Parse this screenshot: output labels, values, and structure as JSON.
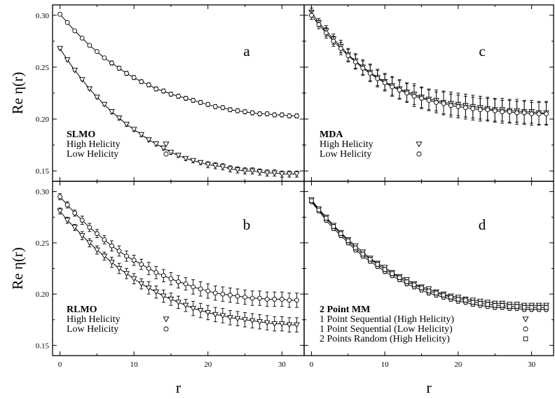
{
  "chart_data": [
    {
      "id": "a",
      "type": "scatter",
      "panel_letter": "a",
      "legend_title": "SLMO",
      "xlim": [
        -1,
        33
      ],
      "ylim": [
        0.14,
        0.31
      ],
      "yticks": [
        "0.15",
        "0.20",
        "0.25",
        "0.30"
      ],
      "xticks": [],
      "ylabel": "Re η(r)",
      "xlabel": "",
      "series": [
        {
          "name": "High Helicity",
          "marker": "triangle",
          "fit_line": true,
          "x": [
            0,
            1,
            2,
            3,
            4,
            5,
            6,
            7,
            8,
            9,
            10,
            11,
            12,
            13,
            14,
            15,
            16,
            17,
            18,
            19,
            20,
            21,
            22,
            23,
            24,
            25,
            26,
            27,
            28,
            29,
            30,
            31,
            32
          ],
          "y": [
            0.268,
            0.257,
            0.247,
            0.238,
            0.229,
            0.221,
            0.214,
            0.207,
            0.201,
            0.195,
            0.19,
            0.185,
            0.18,
            0.176,
            0.172,
            0.168,
            0.165,
            0.162,
            0.16,
            0.158,
            0.156,
            0.155,
            0.154,
            0.152,
            0.151,
            0.15,
            0.15,
            0.149,
            0.148,
            0.148,
            0.147,
            0.147,
            0.147
          ],
          "err": [
            0.001,
            0.001,
            0.001,
            0.001,
            0.001,
            0.001,
            0.001,
            0.002,
            0.002,
            0.002,
            0.002,
            0.002,
            0.002,
            0.002,
            0.002,
            0.002,
            0.002,
            0.002,
            0.002,
            0.002,
            0.003,
            0.003,
            0.003,
            0.003,
            0.003,
            0.003,
            0.003,
            0.003,
            0.003,
            0.003,
            0.003,
            0.003,
            0.003
          ]
        },
        {
          "name": "Low Helicity",
          "marker": "circle",
          "fit_line": true,
          "x": [
            0,
            1,
            2,
            3,
            4,
            5,
            6,
            7,
            8,
            9,
            10,
            11,
            12,
            13,
            14,
            15,
            16,
            17,
            18,
            19,
            20,
            21,
            22,
            23,
            24,
            25,
            26,
            27,
            28,
            29,
            30,
            31,
            32
          ],
          "y": [
            0.301,
            0.293,
            0.285,
            0.278,
            0.271,
            0.265,
            0.259,
            0.254,
            0.249,
            0.244,
            0.24,
            0.236,
            0.233,
            0.229,
            0.227,
            0.224,
            0.222,
            0.22,
            0.218,
            0.216,
            0.214,
            0.212,
            0.211,
            0.209,
            0.208,
            0.207,
            0.206,
            0.205,
            0.205,
            0.204,
            0.204,
            0.203,
            0.203
          ],
          "err": [
            0.001,
            0.001,
            0.001,
            0.001,
            0.001,
            0.001,
            0.001,
            0.002,
            0.002,
            0.002,
            0.002,
            0.002,
            0.002,
            0.002,
            0.002,
            0.002,
            0.002,
            0.002,
            0.002,
            0.002,
            0.002,
            0.002,
            0.002,
            0.002,
            0.002,
            0.002,
            0.002,
            0.002,
            0.002,
            0.002,
            0.002,
            0.002,
            0.002
          ]
        }
      ]
    },
    {
      "id": "c",
      "type": "scatter",
      "panel_letter": "c",
      "legend_title": "MDA",
      "xlim": [
        -1,
        33
      ],
      "ylim": [
        0.14,
        0.31
      ],
      "yticks": [],
      "xticks": [],
      "ylabel": "",
      "xlabel": "",
      "series": [
        {
          "name": "High Helicity",
          "marker": "triangle",
          "fit_line": true,
          "x": [
            0,
            1,
            2,
            3,
            4,
            5,
            6,
            7,
            8,
            9,
            10,
            11,
            12,
            13,
            14,
            15,
            16,
            17,
            18,
            19,
            20,
            21,
            22,
            23,
            24,
            25,
            26,
            27,
            28,
            29,
            30,
            31,
            32
          ],
          "y": [
            0.303,
            0.293,
            0.285,
            0.277,
            0.27,
            0.262,
            0.256,
            0.25,
            0.245,
            0.24,
            0.236,
            0.232,
            0.229,
            0.226,
            0.224,
            0.221,
            0.219,
            0.218,
            0.216,
            0.215,
            0.214,
            0.213,
            0.212,
            0.211,
            0.21,
            0.209,
            0.209,
            0.208,
            0.208,
            0.207,
            0.207,
            0.206,
            0.206
          ],
          "err": [
            0.004,
            0.004,
            0.005,
            0.005,
            0.006,
            0.006,
            0.007,
            0.007,
            0.008,
            0.008,
            0.008,
            0.009,
            0.009,
            0.009,
            0.01,
            0.01,
            0.01,
            0.01,
            0.011,
            0.011,
            0.011,
            0.011,
            0.011,
            0.011,
            0.011,
            0.011,
            0.011,
            0.011,
            0.011,
            0.011,
            0.011,
            0.011,
            0.011
          ]
        },
        {
          "name": "Low Helicity",
          "marker": "circle",
          "fit_line": true,
          "x": [
            0,
            1,
            2,
            3,
            4,
            5,
            6,
            7,
            8,
            9,
            10,
            11,
            12,
            13,
            14,
            15,
            16,
            17,
            18,
            19,
            20,
            21,
            22,
            23,
            24,
            25,
            26,
            27,
            28,
            29,
            30,
            31,
            32
          ],
          "y": [
            0.3,
            0.291,
            0.283,
            0.275,
            0.268,
            0.261,
            0.255,
            0.249,
            0.244,
            0.239,
            0.235,
            0.231,
            0.228,
            0.225,
            0.222,
            0.22,
            0.218,
            0.216,
            0.215,
            0.213,
            0.212,
            0.211,
            0.21,
            0.209,
            0.209,
            0.208,
            0.207,
            0.207,
            0.206,
            0.206,
            0.205,
            0.205,
            0.205
          ],
          "err": [
            0.004,
            0.004,
            0.005,
            0.005,
            0.006,
            0.006,
            0.007,
            0.007,
            0.008,
            0.008,
            0.008,
            0.009,
            0.009,
            0.009,
            0.01,
            0.01,
            0.01,
            0.01,
            0.011,
            0.011,
            0.011,
            0.011,
            0.011,
            0.011,
            0.011,
            0.011,
            0.011,
            0.011,
            0.011,
            0.011,
            0.011,
            0.011,
            0.011
          ]
        }
      ]
    },
    {
      "id": "b",
      "type": "scatter",
      "panel_letter": "b",
      "legend_title": "RLMO",
      "xlim": [
        -1,
        33
      ],
      "ylim": [
        0.14,
        0.31
      ],
      "yticks": [
        "0.15",
        "0.20",
        "0.25",
        "0.30"
      ],
      "xticks": [
        "0",
        "10",
        "20",
        "30"
      ],
      "ylabel": "Re η(r)",
      "xlabel": "r",
      "series": [
        {
          "name": "High Helicity",
          "marker": "triangle",
          "fit_line": true,
          "x": [
            0,
            1,
            2,
            3,
            4,
            5,
            6,
            7,
            8,
            9,
            10,
            11,
            12,
            13,
            14,
            15,
            16,
            17,
            18,
            19,
            20,
            21,
            22,
            23,
            24,
            25,
            26,
            27,
            28,
            29,
            30,
            31,
            32
          ],
          "y": [
            0.281,
            0.272,
            0.265,
            0.257,
            0.25,
            0.243,
            0.237,
            0.231,
            0.225,
            0.22,
            0.215,
            0.21,
            0.206,
            0.202,
            0.198,
            0.195,
            0.192,
            0.189,
            0.186,
            0.184,
            0.182,
            0.18,
            0.179,
            0.177,
            0.176,
            0.175,
            0.174,
            0.173,
            0.172,
            0.171,
            0.171,
            0.17,
            0.17
          ],
          "err": [
            0.003,
            0.003,
            0.003,
            0.004,
            0.004,
            0.004,
            0.004,
            0.005,
            0.005,
            0.005,
            0.005,
            0.005,
            0.006,
            0.006,
            0.006,
            0.006,
            0.006,
            0.006,
            0.007,
            0.007,
            0.007,
            0.007,
            0.007,
            0.007,
            0.007,
            0.007,
            0.007,
            0.007,
            0.007,
            0.007,
            0.007,
            0.007,
            0.007
          ]
        },
        {
          "name": "Low Helicity",
          "marker": "circle",
          "fit_line": true,
          "x": [
            0,
            1,
            2,
            3,
            4,
            5,
            6,
            7,
            8,
            9,
            10,
            11,
            12,
            13,
            14,
            15,
            16,
            17,
            18,
            19,
            20,
            21,
            22,
            23,
            24,
            25,
            26,
            27,
            28,
            29,
            30,
            31,
            32
          ],
          "y": [
            0.295,
            0.287,
            0.279,
            0.272,
            0.265,
            0.259,
            0.253,
            0.247,
            0.242,
            0.237,
            0.233,
            0.229,
            0.225,
            0.221,
            0.218,
            0.215,
            0.212,
            0.21,
            0.207,
            0.205,
            0.203,
            0.201,
            0.2,
            0.199,
            0.198,
            0.197,
            0.196,
            0.196,
            0.195,
            0.195,
            0.195,
            0.194,
            0.194
          ],
          "err": [
            0.003,
            0.003,
            0.003,
            0.004,
            0.004,
            0.004,
            0.004,
            0.005,
            0.005,
            0.005,
            0.005,
            0.005,
            0.006,
            0.006,
            0.006,
            0.006,
            0.006,
            0.006,
            0.007,
            0.007,
            0.007,
            0.007,
            0.007,
            0.007,
            0.007,
            0.007,
            0.007,
            0.007,
            0.007,
            0.007,
            0.007,
            0.007,
            0.007
          ]
        }
      ]
    },
    {
      "id": "d",
      "type": "scatter",
      "panel_letter": "d",
      "legend_title": "2 Point MM",
      "xlim": [
        -1,
        33
      ],
      "ylim": [
        0.14,
        0.31
      ],
      "yticks": [],
      "xticks": [
        "0",
        "10",
        "20",
        "30"
      ],
      "ylabel": "",
      "xlabel": "r",
      "series": [
        {
          "name": "1 Point Sequential (High Helicity)",
          "marker": "triangle",
          "fit_line": true,
          "x": [
            0,
            1,
            2,
            3,
            4,
            5,
            6,
            7,
            8,
            9,
            10,
            11,
            12,
            13,
            14,
            15,
            16,
            17,
            18,
            19,
            20,
            21,
            22,
            23,
            24,
            25,
            26,
            27,
            28,
            29,
            30,
            31,
            32
          ],
          "y": [
            0.292,
            0.283,
            0.275,
            0.267,
            0.26,
            0.253,
            0.247,
            0.241,
            0.235,
            0.23,
            0.226,
            0.221,
            0.217,
            0.214,
            0.21,
            0.207,
            0.205,
            0.202,
            0.2,
            0.198,
            0.197,
            0.195,
            0.194,
            0.193,
            0.192,
            0.191,
            0.191,
            0.19,
            0.19,
            0.189,
            0.189,
            0.189,
            0.189
          ],
          "err": [
            0.001,
            0.001,
            0.002,
            0.002,
            0.002,
            0.002,
            0.002,
            0.002,
            0.002,
            0.002,
            0.002,
            0.002,
            0.002,
            0.002,
            0.002,
            0.002,
            0.002,
            0.002,
            0.002,
            0.002,
            0.002,
            0.002,
            0.002,
            0.002,
            0.002,
            0.002,
            0.002,
            0.002,
            0.002,
            0.002,
            0.002,
            0.002,
            0.002
          ]
        },
        {
          "name": "1 Point Sequential (Low Helicity)",
          "marker": "circle",
          "fit_line": true,
          "x": [
            0,
            1,
            2,
            3,
            4,
            5,
            6,
            7,
            8,
            9,
            10,
            11,
            12,
            13,
            14,
            15,
            16,
            17,
            18,
            19,
            20,
            21,
            22,
            23,
            24,
            25,
            26,
            27,
            28,
            29,
            30,
            31,
            32
          ],
          "y": [
            0.29,
            0.281,
            0.272,
            0.264,
            0.257,
            0.25,
            0.243,
            0.237,
            0.232,
            0.227,
            0.222,
            0.218,
            0.214,
            0.21,
            0.207,
            0.204,
            0.201,
            0.199,
            0.197,
            0.195,
            0.193,
            0.192,
            0.19,
            0.189,
            0.188,
            0.187,
            0.187,
            0.186,
            0.186,
            0.185,
            0.185,
            0.185,
            0.185
          ],
          "err": [
            0.001,
            0.001,
            0.002,
            0.002,
            0.002,
            0.002,
            0.002,
            0.002,
            0.002,
            0.002,
            0.002,
            0.002,
            0.002,
            0.002,
            0.002,
            0.002,
            0.002,
            0.002,
            0.002,
            0.002,
            0.002,
            0.002,
            0.002,
            0.002,
            0.002,
            0.002,
            0.002,
            0.002,
            0.002,
            0.002,
            0.002,
            0.002,
            0.002
          ]
        },
        {
          "name": "2 Points Random (High Helicity)",
          "marker": "square",
          "fit_line": true,
          "x": [
            0,
            1,
            2,
            3,
            4,
            5,
            6,
            7,
            8,
            9,
            10,
            11,
            12,
            13,
            14,
            15,
            16,
            17,
            18,
            19,
            20,
            21,
            22,
            23,
            24,
            25,
            26,
            27,
            28,
            29,
            30,
            31,
            32
          ],
          "y": [
            0.291,
            0.282,
            0.274,
            0.266,
            0.259,
            0.252,
            0.245,
            0.239,
            0.234,
            0.229,
            0.224,
            0.22,
            0.216,
            0.212,
            0.209,
            0.206,
            0.203,
            0.201,
            0.199,
            0.197,
            0.195,
            0.194,
            0.192,
            0.191,
            0.19,
            0.189,
            0.189,
            0.188,
            0.188,
            0.187,
            0.187,
            0.187,
            0.187
          ],
          "err": [
            0.001,
            0.001,
            0.002,
            0.002,
            0.002,
            0.002,
            0.002,
            0.002,
            0.002,
            0.002,
            0.002,
            0.002,
            0.002,
            0.002,
            0.002,
            0.002,
            0.002,
            0.002,
            0.002,
            0.002,
            0.002,
            0.002,
            0.002,
            0.002,
            0.002,
            0.002,
            0.002,
            0.002,
            0.002,
            0.002,
            0.002,
            0.002,
            0.002
          ]
        }
      ]
    }
  ]
}
